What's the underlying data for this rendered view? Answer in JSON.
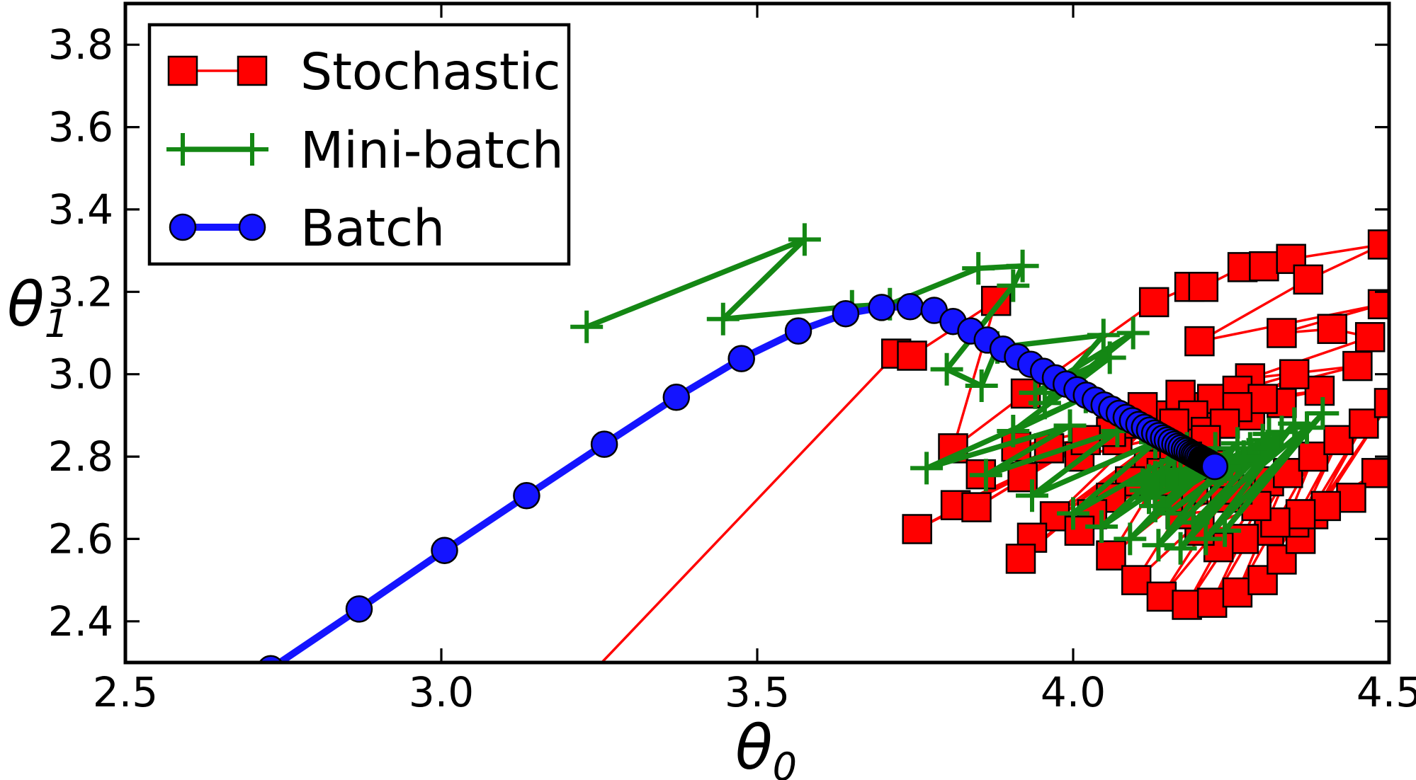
{
  "chart_data": {
    "type": "line",
    "title": "",
    "xlabel_base": "θ",
    "xlabel_sub": "0",
    "ylabel_base": "θ",
    "ylabel_sub": "1",
    "xlim": [
      2.5,
      4.5
    ],
    "ylim": [
      2.3,
      3.9
    ],
    "xticks": [
      "2.5",
      "3.0",
      "3.5",
      "4.0",
      "4.5"
    ],
    "yticks": [
      "2.4",
      "2.6",
      "2.8",
      "3.0",
      "3.2",
      "3.4",
      "3.6",
      "3.8"
    ],
    "grid": false,
    "legend_position": "upper left",
    "background_color": "#ffffff",
    "frame_color": "#000000",
    "series": [
      {
        "name": "Stochastic",
        "color": "#ff0000",
        "marker": "square",
        "marker_edge": "#000000",
        "marker_size": 40,
        "line_width": 3.5,
        "points": [
          [
            3.08,
            2.02
          ],
          [
            3.72,
            3.05
          ],
          [
            3.745,
            3.045
          ],
          [
            3.878,
            3.178
          ],
          [
            3.81,
            2.82
          ],
          [
            3.925,
            2.953
          ],
          [
            4.128,
            3.175
          ],
          [
            4.184,
            3.212
          ],
          [
            4.206,
            3.212
          ],
          [
            4.268,
            3.26
          ],
          [
            4.302,
            3.262
          ],
          [
            4.345,
            3.28
          ],
          [
            4.49,
            3.315
          ],
          [
            4.372,
            3.23
          ],
          [
            4.2,
            3.08
          ],
          [
            4.49,
            3.17
          ],
          [
            4.33,
            3.1
          ],
          [
            4.41,
            3.11
          ],
          [
            4.47,
            3.09
          ],
          [
            4.28,
            2.99
          ],
          [
            4.45,
            3.02
          ],
          [
            4.19,
            2.92
          ],
          [
            4.39,
            2.96
          ],
          [
            4.13,
            2.88
          ],
          [
            4.33,
            2.93
          ],
          [
            4.07,
            2.84
          ],
          [
            4.28,
            2.9
          ],
          [
            4.01,
            2.8
          ],
          [
            4.23,
            2.88
          ],
          [
            3.962,
            2.82
          ],
          [
            4.18,
            2.86
          ],
          [
            3.91,
            2.824
          ],
          [
            4.15,
            2.9
          ],
          [
            3.854,
            2.757
          ],
          [
            4.1,
            2.88
          ],
          [
            3.814,
            2.682
          ],
          [
            4.06,
            2.86
          ],
          [
            3.753,
            2.624
          ],
          [
            4.02,
            2.84
          ],
          [
            3.847,
            2.677
          ],
          [
            4.11,
            2.92
          ],
          [
            3.92,
            2.75
          ],
          [
            4.17,
            2.95
          ],
          [
            3.971,
            2.655
          ],
          [
            4.22,
            2.94
          ],
          [
            3.935,
            2.603
          ],
          [
            4.19,
            2.9
          ],
          [
            3.917,
            2.552
          ],
          [
            4.16,
            2.88
          ],
          [
            4.26,
            2.96
          ],
          [
            4.35,
            3.0
          ],
          [
            4.21,
            2.86
          ],
          [
            4.3,
            2.94
          ],
          [
            4.15,
            2.82
          ],
          [
            4.26,
            2.92
          ],
          [
            4.12,
            2.78
          ],
          [
            4.24,
            2.88
          ],
          [
            4.09,
            2.74
          ],
          [
            4.21,
            2.84
          ],
          [
            4.06,
            2.7
          ],
          [
            4.18,
            2.8
          ],
          [
            4.03,
            2.66
          ],
          [
            4.16,
            2.78
          ],
          [
            4.01,
            2.62
          ],
          [
            4.14,
            2.76
          ],
          [
            4.06,
            2.56
          ],
          [
            4.19,
            2.72
          ],
          [
            4.1,
            2.5
          ],
          [
            4.24,
            2.7
          ],
          [
            4.14,
            2.46
          ],
          [
            4.28,
            2.72
          ],
          [
            4.18,
            2.44
          ],
          [
            4.31,
            2.74
          ],
          [
            4.22,
            2.445
          ],
          [
            4.34,
            2.76
          ],
          [
            4.26,
            2.47
          ],
          [
            4.38,
            2.8
          ],
          [
            4.3,
            2.5
          ],
          [
            4.42,
            2.84
          ],
          [
            4.33,
            2.55
          ],
          [
            4.46,
            2.88
          ],
          [
            4.36,
            2.6
          ],
          [
            4.5,
            2.93
          ],
          [
            4.38,
            2.66
          ],
          [
            4.48,
            2.76
          ],
          [
            4.35,
            2.64
          ],
          [
            4.44,
            2.7
          ],
          [
            4.31,
            2.62
          ],
          [
            4.4,
            2.68
          ],
          [
            4.27,
            2.6
          ],
          [
            4.36,
            2.66
          ],
          [
            4.23,
            2.58
          ],
          [
            4.32,
            2.64
          ],
          [
            4.2,
            2.62
          ],
          [
            4.29,
            2.68
          ],
          [
            4.17,
            2.66
          ],
          [
            4.26,
            2.72
          ],
          [
            4.15,
            2.7
          ],
          [
            4.24,
            2.76
          ],
          [
            4.14,
            2.74
          ],
          [
            4.22,
            2.78
          ]
        ]
      },
      {
        "name": "Mini-batch",
        "color": "#148714",
        "marker": "plus",
        "marker_edge": "#148714",
        "marker_size": 46,
        "line_width": 7.5,
        "points": [
          [
            3.23,
            3.115
          ],
          [
            3.575,
            3.327
          ],
          [
            3.446,
            3.134
          ],
          [
            3.65,
            3.165
          ],
          [
            3.71,
            3.17
          ],
          [
            3.85,
            3.257
          ],
          [
            3.92,
            3.263
          ],
          [
            3.905,
            3.215
          ],
          [
            3.8,
            3.012
          ],
          [
            3.855,
            2.972
          ],
          [
            3.88,
            3.065
          ],
          [
            4.048,
            3.095
          ],
          [
            3.955,
            2.93
          ],
          [
            4.095,
            3.1
          ],
          [
            3.94,
            2.955
          ],
          [
            4.058,
            3.04
          ],
          [
            3.905,
            2.862
          ],
          [
            4.02,
            2.945
          ],
          [
            3.768,
            2.772
          ],
          [
            3.995,
            2.875
          ],
          [
            3.862,
            2.755
          ],
          [
            4.07,
            2.862
          ],
          [
            3.935,
            2.705
          ],
          [
            4.13,
            2.835
          ],
          [
            4.0,
            2.662
          ],
          [
            4.18,
            2.82
          ],
          [
            4.045,
            2.63
          ],
          [
            4.225,
            2.82
          ],
          [
            4.09,
            2.6
          ],
          [
            4.26,
            2.832
          ],
          [
            4.135,
            2.585
          ],
          [
            4.31,
            2.855
          ],
          [
            4.17,
            2.577
          ],
          [
            4.35,
            2.88
          ],
          [
            4.21,
            2.6
          ],
          [
            4.395,
            2.905
          ],
          [
            4.24,
            2.62
          ],
          [
            4.37,
            2.87
          ],
          [
            4.19,
            2.64
          ],
          [
            4.33,
            2.86
          ],
          [
            4.15,
            2.662
          ],
          [
            4.3,
            2.84
          ],
          [
            4.13,
            2.68
          ],
          [
            4.28,
            2.82
          ],
          [
            4.12,
            2.7
          ],
          [
            4.27,
            2.8
          ],
          [
            4.115,
            2.718
          ],
          [
            4.26,
            2.79
          ],
          [
            4.11,
            2.732
          ],
          [
            4.25,
            2.785
          ],
          [
            4.12,
            2.742
          ],
          [
            4.245,
            2.78
          ],
          [
            4.13,
            2.75
          ],
          [
            4.24,
            2.775
          ],
          [
            4.14,
            2.756
          ],
          [
            4.235,
            2.77
          ],
          [
            4.15,
            2.762
          ],
          [
            4.23,
            2.77
          ],
          [
            4.16,
            2.766
          ],
          [
            4.225,
            2.77
          ],
          [
            4.17,
            2.768
          ]
        ]
      },
      {
        "name": "Batch",
        "color": "#1414ff",
        "marker": "circle",
        "marker_edge": "#000000",
        "marker_size": 36,
        "line_width": 10,
        "points": [
          [
            2.59,
            2.14
          ],
          [
            2.73,
            2.285
          ],
          [
            2.87,
            2.43
          ],
          [
            3.005,
            2.572
          ],
          [
            3.135,
            2.705
          ],
          [
            3.258,
            2.83
          ],
          [
            3.372,
            2.944
          ],
          [
            3.475,
            3.038
          ],
          [
            3.565,
            3.105
          ],
          [
            3.64,
            3.147
          ],
          [
            3.697,
            3.162
          ],
          [
            3.742,
            3.164
          ],
          [
            3.78,
            3.155
          ],
          [
            3.81,
            3.128
          ],
          [
            3.838,
            3.105
          ],
          [
            3.864,
            3.083
          ],
          [
            3.889,
            3.061
          ],
          [
            3.912,
            3.042
          ],
          [
            3.933,
            3.024
          ],
          [
            3.953,
            3.007
          ],
          [
            3.972,
            2.991
          ],
          [
            3.989,
            2.976
          ],
          [
            4.006,
            2.962
          ],
          [
            4.021,
            2.949
          ],
          [
            4.035,
            2.937
          ],
          [
            4.049,
            2.925
          ],
          [
            4.061,
            2.915
          ],
          [
            4.073,
            2.905
          ],
          [
            4.084,
            2.895
          ],
          [
            4.094,
            2.887
          ],
          [
            4.104,
            2.878
          ],
          [
            4.113,
            2.871
          ],
          [
            4.121,
            2.864
          ],
          [
            4.129,
            2.857
          ],
          [
            4.136,
            2.851
          ],
          [
            4.143,
            2.845
          ],
          [
            4.149,
            2.84
          ],
          [
            4.155,
            2.835
          ],
          [
            4.161,
            2.83
          ],
          [
            4.166,
            2.825
          ],
          [
            4.171,
            2.821
          ],
          [
            4.176,
            2.817
          ],
          [
            4.18,
            2.814
          ],
          [
            4.184,
            2.81
          ],
          [
            4.188,
            2.807
          ],
          [
            4.191,
            2.804
          ],
          [
            4.194,
            2.802
          ],
          [
            4.197,
            2.799
          ],
          [
            4.2,
            2.797
          ],
          [
            4.203,
            2.794
          ],
          [
            4.205,
            2.792
          ],
          [
            4.207,
            2.791
          ],
          [
            4.209,
            2.789
          ],
          [
            4.211,
            2.787
          ],
          [
            4.213,
            2.786
          ],
          [
            4.215,
            2.784
          ],
          [
            4.217,
            2.782
          ],
          [
            4.218,
            2.781
          ],
          [
            4.22,
            2.78
          ],
          [
            4.221,
            2.779
          ],
          [
            4.222,
            2.778
          ],
          [
            4.223,
            2.777
          ],
          [
            4.224,
            2.776
          ]
        ]
      }
    ]
  }
}
